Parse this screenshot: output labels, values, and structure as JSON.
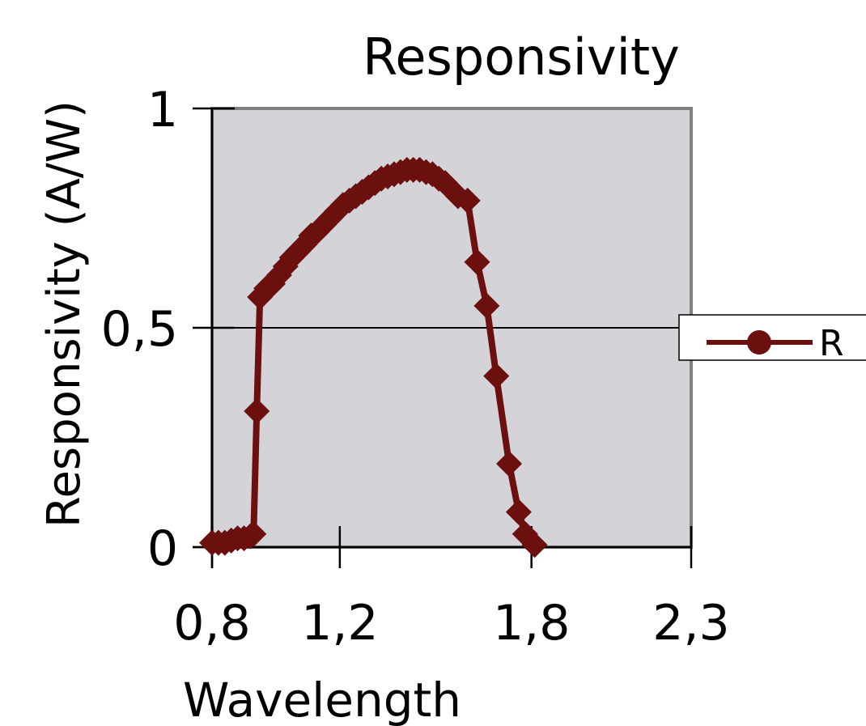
{
  "chart_data": {
    "type": "line",
    "title": "Responsivity",
    "xlabel": "Wavelength",
    "ylabel": "Responsivity (A/W)",
    "xlim": [
      0.8,
      2.3
    ],
    "ylim": [
      0,
      1
    ],
    "x_ticks": [
      0.8,
      1.2,
      1.8,
      2.3
    ],
    "x_tick_labels": [
      "0,8",
      "1,2",
      "1,8",
      "2,3"
    ],
    "y_ticks": [
      0,
      0.5,
      1
    ],
    "y_tick_labels": [
      "0",
      "0,5",
      "1"
    ],
    "grid": "horizontal major gridline at 0,5",
    "legend": {
      "position": "right",
      "entries": [
        "R"
      ]
    },
    "colors": {
      "series": "#6b0f0f",
      "plot_bg": "#d4d4d8",
      "plot_border": "#808080"
    },
    "series": [
      {
        "name": "R",
        "marker": "diamond",
        "x": [
          0.8,
          0.82,
          0.84,
          0.86,
          0.88,
          0.9,
          0.92,
          0.93,
          0.94,
          0.95,
          0.97,
          0.99,
          1.01,
          1.03,
          1.05,
          1.07,
          1.09,
          1.11,
          1.13,
          1.15,
          1.17,
          1.19,
          1.21,
          1.23,
          1.25,
          1.27,
          1.29,
          1.31,
          1.33,
          1.35,
          1.37,
          1.39,
          1.41,
          1.43,
          1.45,
          1.47,
          1.49,
          1.51,
          1.53,
          1.55,
          1.57,
          1.6,
          1.63,
          1.66,
          1.69,
          1.73,
          1.76,
          1.78,
          1.81
        ],
        "values": [
          0.01,
          0.01,
          0.01,
          0.015,
          0.02,
          0.02,
          0.025,
          0.03,
          0.31,
          0.57,
          0.59,
          0.6,
          0.62,
          0.64,
          0.66,
          0.675,
          0.69,
          0.71,
          0.72,
          0.735,
          0.75,
          0.765,
          0.78,
          0.79,
          0.8,
          0.81,
          0.82,
          0.83,
          0.84,
          0.845,
          0.85,
          0.855,
          0.86,
          0.86,
          0.86,
          0.855,
          0.85,
          0.84,
          0.83,
          0.815,
          0.8,
          0.79,
          0.65,
          0.55,
          0.39,
          0.19,
          0.08,
          0.03,
          0.005
        ]
      }
    ]
  }
}
